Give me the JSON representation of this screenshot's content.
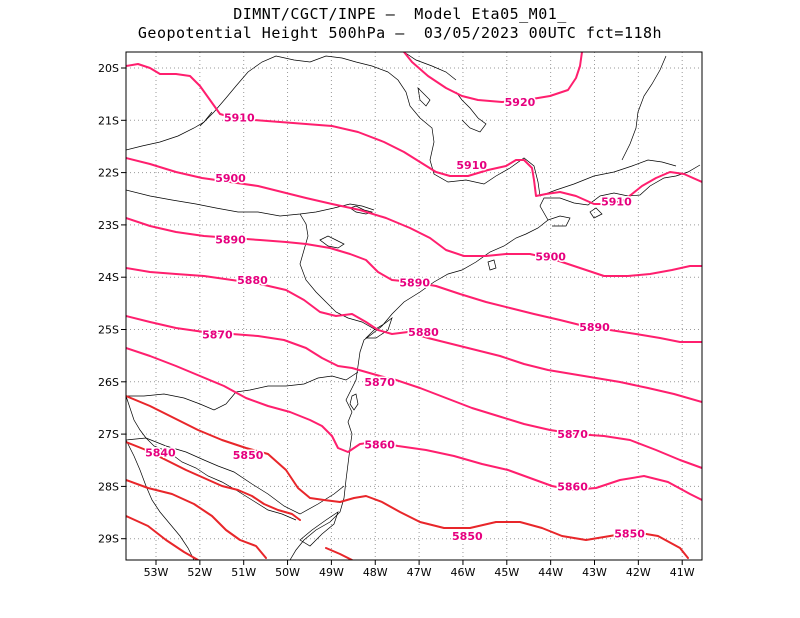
{
  "title": {
    "line1": "DIMNT/CGCT/INPE –  Model Eta05_M01_",
    "line2": "Geopotential Height 500hPa –  03/05/2023 00UTC fct=118h"
  },
  "axes": {
    "lon_ticks": [
      "53W",
      "52W",
      "51W",
      "50W",
      "49W",
      "48W",
      "47W",
      "46W",
      "45W",
      "44W",
      "43W",
      "42W",
      "41W"
    ],
    "lat_ticks": [
      "20S",
      "21S",
      "22S",
      "23S",
      "24S",
      "25S",
      "26S",
      "27S",
      "28S",
      "29S"
    ]
  },
  "colors": {
    "contour_a": "#ff1f6e",
    "contour_b": "#e8262a",
    "label": "#e6007e",
    "border": "#000000",
    "grid": "#9a9a9a"
  },
  "contour_labels": [
    {
      "text": "5920",
      "lon": -44.7,
      "lat": -20.65
    },
    {
      "text": "5910",
      "lon": -51.1,
      "lat": -20.95
    },
    {
      "text": "5910",
      "lon": -45.8,
      "lat": -21.85
    },
    {
      "text": "5910",
      "lon": -42.5,
      "lat": -22.55
    },
    {
      "text": "5900",
      "lon": -51.3,
      "lat": -22.1
    },
    {
      "text": "5900",
      "lon": -44.0,
      "lat": -23.6
    },
    {
      "text": "5890",
      "lon": -51.3,
      "lat": -23.28
    },
    {
      "text": "5890",
      "lon": -47.1,
      "lat": -24.1
    },
    {
      "text": "5890",
      "lon": -43.0,
      "lat": -24.95
    },
    {
      "text": "5880",
      "lon": -50.8,
      "lat": -24.05
    },
    {
      "text": "5880",
      "lon": -46.9,
      "lat": -25.05
    },
    {
      "text": "5870",
      "lon": -51.6,
      "lat": -25.1
    },
    {
      "text": "5870",
      "lon": -47.9,
      "lat": -26.0
    },
    {
      "text": "5870",
      "lon": -43.5,
      "lat": -27.0
    },
    {
      "text": "5860",
      "lon": -47.9,
      "lat": -27.2
    },
    {
      "text": "5860",
      "lon": -43.5,
      "lat": -28.0
    },
    {
      "text": "5850",
      "lon": -50.9,
      "lat": -27.4
    },
    {
      "text": "5850",
      "lon": -45.9,
      "lat": -28.95
    },
    {
      "text": "5850",
      "lon": -42.2,
      "lat": -28.9
    },
    {
      "text": "5840",
      "lon": -52.9,
      "lat": -27.35
    }
  ]
}
